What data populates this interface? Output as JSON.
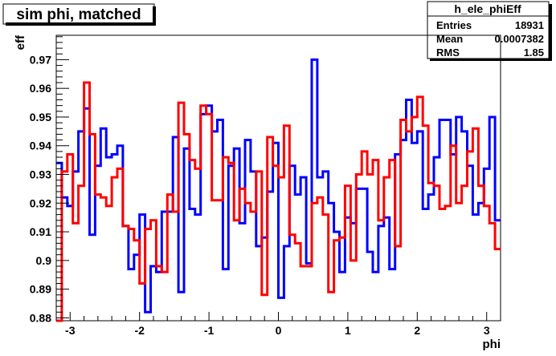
{
  "title_box": {
    "text": "sim phi, matched"
  },
  "stats_box": {
    "name": "h_ele_phiEff",
    "rows": [
      {
        "label": "Entries",
        "value": "18931"
      },
      {
        "label": "Mean",
        "value": "0.0007382"
      },
      {
        "label": "RMS",
        "value": "1.85"
      }
    ]
  },
  "chart_data": {
    "type": "line",
    "drawstyle": "step",
    "xlabel": "phi",
    "ylabel": "eff",
    "xlim": [
      -3.2,
      3.2
    ],
    "ylim": [
      0.879,
      0.9785
    ],
    "x_ticks": [
      -3,
      -2,
      -1,
      0,
      1,
      2,
      3
    ],
    "y_ticks": [
      0.88,
      0.89,
      0.9,
      0.91,
      0.92,
      0.93,
      0.94,
      0.95,
      0.96,
      0.97
    ],
    "y_tick_labels": [
      "0.88",
      "0.89",
      "0.9",
      "0.91",
      "0.92",
      "0.93",
      "0.94",
      "0.95",
      "0.96",
      "0.97"
    ],
    "grid": false,
    "bins": 80,
    "series": [
      {
        "color": "#0000ff",
        "values": [
          0.934,
          0.922,
          0.919,
          0.931,
          0.945,
          0.953,
          0.909,
          0.933,
          0.946,
          0.936,
          0.937,
          0.94,
          0.912,
          0.897,
          0.902,
          0.916,
          0.882,
          0.898,
          0.896,
          0.917,
          0.917,
          0.943,
          0.889,
          0.939,
          0.918,
          0.916,
          0.951,
          0.954,
          0.945,
          0.949,
          0.897,
          0.933,
          0.939,
          0.913,
          0.942,
          0.931,
          0.905,
          0.908,
          0.924,
          0.941,
          0.887,
          0.905,
          0.933,
          0.923,
          0.929,
          0.899,
          0.97,
          0.929,
          0.931,
          0.92,
          0.91,
          0.896,
          0.915,
          0.913,
          0.925,
          0.925,
          0.903,
          0.896,
          0.912,
          0.915,
          0.897,
          0.937,
          0.942,
          0.956,
          0.941,
          0.945,
          0.918,
          0.923,
          0.936,
          0.949,
          0.949,
          0.937,
          0.95,
          0.945,
          0.933,
          0.916,
          0.92,
          0.932,
          0.95,
          0.914
        ]
      },
      {
        "color": "#ff0000",
        "values": [
          0.876,
          0.931,
          0.937,
          0.913,
          0.926,
          0.962,
          0.944,
          0.923,
          0.922,
          0.919,
          0.929,
          0.932,
          0.912,
          0.911,
          0.907,
          0.892,
          0.911,
          0.914,
          0.898,
          0.896,
          0.923,
          0.917,
          0.955,
          0.944,
          0.935,
          0.932,
          0.954,
          0.951,
          0.921,
          0.921,
          0.936,
          0.934,
          0.914,
          0.925,
          0.92,
          0.917,
          0.931,
          0.888,
          0.943,
          0.933,
          0.929,
          0.947,
          0.909,
          0.906,
          0.898,
          0.898,
          0.92,
          0.922,
          0.916,
          0.889,
          0.907,
          0.908,
          0.926,
          0.9,
          0.93,
          0.938,
          0.93,
          0.935,
          0.914,
          0.929,
          0.935,
          0.905,
          0.949,
          0.945,
          0.95,
          0.957,
          0.947,
          0.927,
          0.926,
          0.918,
          0.919,
          0.94,
          0.92,
          0.926,
          0.938,
          0.946,
          0.926,
          0.919,
          0.913,
          0.904
        ]
      }
    ]
  }
}
